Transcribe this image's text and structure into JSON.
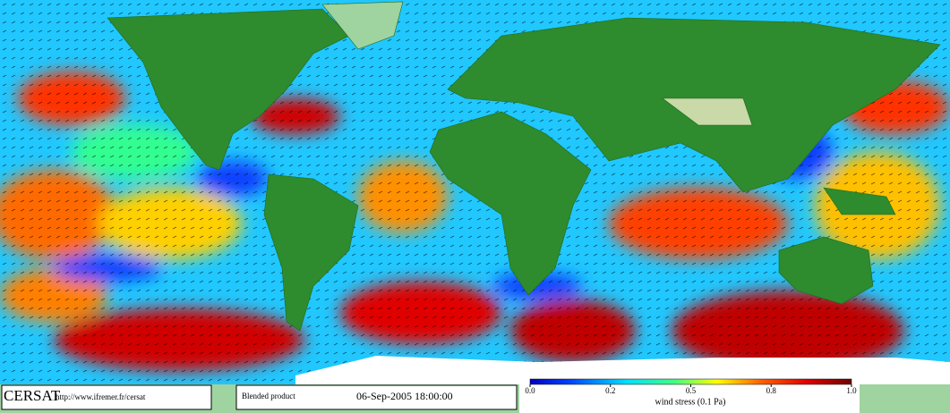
{
  "footer": {
    "logo": "CERSAT",
    "url": "http://www.ifremer.fr/cersat",
    "product": "Blended product",
    "date": "06-Sep-2005 18:00:00"
  },
  "colorbar": {
    "label": "wind stress (0.1 Pa)",
    "ticks": [
      {
        "value": 0,
        "label": "0.0"
      },
      {
        "value": 0.2,
        "label": "0.2"
      },
      {
        "value": 0.5,
        "label": "0.5"
      },
      {
        "value": 0.8,
        "label": "0.8"
      },
      {
        "value": 1,
        "label": "1.0"
      }
    ]
  }
}
